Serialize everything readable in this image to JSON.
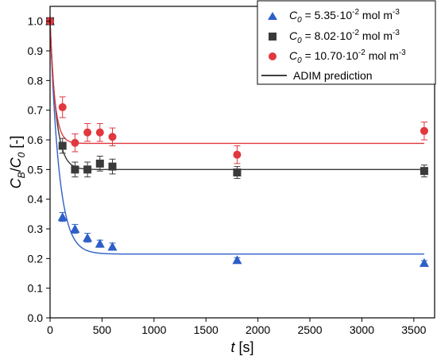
{
  "chart_data": {
    "type": "scatter",
    "xlim": [
      0,
      3700
    ],
    "ylim": [
      0,
      1.05
    ],
    "x_ticks": [
      0,
      500,
      1000,
      1500,
      2000,
      2500,
      3000,
      3500
    ],
    "y_ticks": [
      0.0,
      0.1,
      0.2,
      0.3,
      0.4,
      0.5,
      0.6,
      0.7,
      0.8,
      0.9,
      1.0
    ],
    "x_tick_labels": [
      "0",
      "500",
      "1000",
      "1500",
      "2000",
      "2500",
      "3000",
      "3500"
    ],
    "y_tick_labels": [
      "0.0",
      "0.1",
      "0.2",
      "0.3",
      "0.4",
      "0.5",
      "0.6",
      "0.7",
      "0.8",
      "0.9",
      "1.0"
    ],
    "xlabel": {
      "main": "t",
      "unit": " [s]"
    },
    "ylabel": {
      "c": "C",
      "sub_b": "B",
      "slash": "/",
      "c2": "C",
      "sub_0": "0",
      "unit": " [-]"
    },
    "legend_position": "top-right",
    "series": [
      {
        "marker": "triangle",
        "color": "#2e5fc8",
        "legend": {
          "c": "C",
          "sub": "0",
          "eq": " = 5.35·10",
          "exp": "-2",
          "unit": " mol m",
          "unit_exp": "-3"
        },
        "points": [
          {
            "x": 0,
            "y": 1.0,
            "err": 0
          },
          {
            "x": 120,
            "y": 0.34,
            "err": 0.015
          },
          {
            "x": 240,
            "y": 0.3,
            "err": 0.015
          },
          {
            "x": 360,
            "y": 0.27,
            "err": 0.015
          },
          {
            "x": 480,
            "y": 0.25,
            "err": 0.012
          },
          {
            "x": 600,
            "y": 0.24,
            "err": 0.012
          },
          {
            "x": 1800,
            "y": 0.195,
            "err": 0.008
          },
          {
            "x": 3600,
            "y": 0.185,
            "err": 0.008
          }
        ],
        "model": {
          "plateau": 0.215,
          "tau": 85
        }
      },
      {
        "marker": "square",
        "color": "#3a3a3a",
        "legend": {
          "c": "C",
          "sub": "0",
          "eq": " = 8.02·10",
          "exp": "-2",
          "unit": " mol m",
          "unit_exp": "-3"
        },
        "points": [
          {
            "x": 0,
            "y": 1.0,
            "err": 0
          },
          {
            "x": 120,
            "y": 0.58,
            "err": 0.025
          },
          {
            "x": 240,
            "y": 0.5,
            "err": 0.025
          },
          {
            "x": 360,
            "y": 0.5,
            "err": 0.025
          },
          {
            "x": 480,
            "y": 0.52,
            "err": 0.025
          },
          {
            "x": 600,
            "y": 0.51,
            "err": 0.025
          },
          {
            "x": 1800,
            "y": 0.49,
            "err": 0.02
          },
          {
            "x": 3600,
            "y": 0.495,
            "err": 0.02
          }
        ],
        "model": {
          "plateau": 0.5,
          "tau": 60
        }
      },
      {
        "marker": "circle",
        "color": "#e0383e",
        "legend": {
          "c": "C",
          "sub": "0",
          "eq": " = 10.70·10",
          "exp": "-2",
          "unit": " mol m",
          "unit_exp": "-3"
        },
        "points": [
          {
            "x": 0,
            "y": 1.0,
            "err": 0
          },
          {
            "x": 120,
            "y": 0.71,
            "err": 0.035
          },
          {
            "x": 240,
            "y": 0.59,
            "err": 0.03
          },
          {
            "x": 360,
            "y": 0.625,
            "err": 0.03
          },
          {
            "x": 480,
            "y": 0.625,
            "err": 0.03
          },
          {
            "x": 600,
            "y": 0.61,
            "err": 0.03
          },
          {
            "x": 1800,
            "y": 0.55,
            "err": 0.03
          },
          {
            "x": 3600,
            "y": 0.63,
            "err": 0.03
          }
        ],
        "model": {
          "plateau": 0.588,
          "tau": 45
        }
      }
    ],
    "model_line": {
      "label": "ADIM prediction",
      "color": "#000000"
    }
  }
}
